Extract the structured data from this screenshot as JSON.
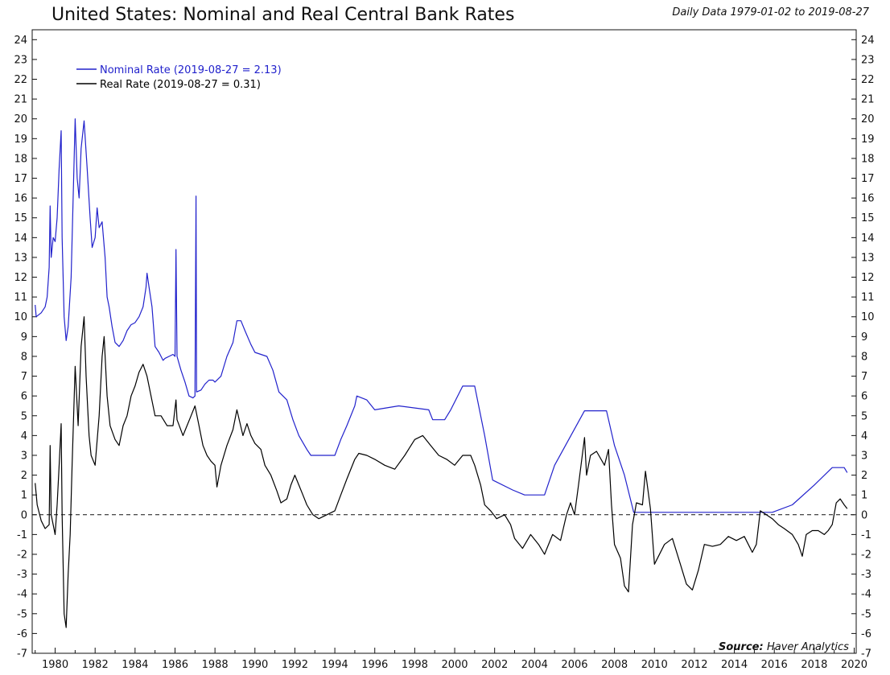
{
  "chart_data": {
    "type": "line",
    "title": "United States: Nominal and Real Central Bank Rates",
    "subtitle": "Daily Data 1979-01-02 to 2019-08-27",
    "source_label": "Source:",
    "source_value": "Haver Analytics",
    "xlim": [
      1978.85,
      2020.1
    ],
    "ylim": [
      -7,
      24.5
    ],
    "xticks": [
      1980,
      1982,
      1984,
      1986,
      1988,
      1990,
      1992,
      1994,
      1996,
      1998,
      2000,
      2002,
      2004,
      2006,
      2008,
      2010,
      2012,
      2014,
      2016,
      2018,
      2020
    ],
    "yticks": [
      -7,
      -6,
      -5,
      -4,
      -3,
      -2,
      -1,
      0,
      1,
      2,
      3,
      4,
      5,
      6,
      7,
      8,
      9,
      10,
      11,
      12,
      13,
      14,
      15,
      16,
      17,
      18,
      19,
      20,
      21,
      22,
      23,
      24
    ],
    "zero_line": "dashed",
    "grid": false,
    "legend_position": "top-left",
    "series": [
      {
        "name": "Nominal Rate (2019-08-27 = 2.13)",
        "color": "#2222cc",
        "points": [
          [
            1979.0,
            10.6
          ],
          [
            1979.05,
            10.0
          ],
          [
            1979.3,
            10.2
          ],
          [
            1979.5,
            10.5
          ],
          [
            1979.6,
            11.0
          ],
          [
            1979.7,
            12.5
          ],
          [
            1979.75,
            15.6
          ],
          [
            1979.8,
            13.0
          ],
          [
            1979.9,
            14.0
          ],
          [
            1980.0,
            13.8
          ],
          [
            1980.1,
            15.0
          ],
          [
            1980.2,
            17.5
          ],
          [
            1980.3,
            19.4
          ],
          [
            1980.35,
            14.0
          ],
          [
            1980.45,
            10.0
          ],
          [
            1980.55,
            8.8
          ],
          [
            1980.65,
            9.5
          ],
          [
            1980.8,
            12.0
          ],
          [
            1980.9,
            16.0
          ],
          [
            1981.0,
            20.0
          ],
          [
            1981.1,
            17.0
          ],
          [
            1981.2,
            16.0
          ],
          [
            1981.3,
            18.5
          ],
          [
            1981.45,
            19.9
          ],
          [
            1981.6,
            17.5
          ],
          [
            1981.75,
            15.0
          ],
          [
            1981.85,
            13.5
          ],
          [
            1982.0,
            14.0
          ],
          [
            1982.1,
            15.5
          ],
          [
            1982.2,
            14.5
          ],
          [
            1982.35,
            14.8
          ],
          [
            1982.5,
            13.0
          ],
          [
            1982.6,
            11.0
          ],
          [
            1982.7,
            10.5
          ],
          [
            1982.85,
            9.5
          ],
          [
            1983.0,
            8.7
          ],
          [
            1983.2,
            8.5
          ],
          [
            1983.4,
            8.8
          ],
          [
            1983.6,
            9.3
          ],
          [
            1983.8,
            9.6
          ],
          [
            1984.0,
            9.7
          ],
          [
            1984.2,
            10.0
          ],
          [
            1984.4,
            10.5
          ],
          [
            1984.55,
            11.5
          ],
          [
            1984.6,
            12.2
          ],
          [
            1984.7,
            11.5
          ],
          [
            1984.85,
            10.5
          ],
          [
            1985.0,
            8.5
          ],
          [
            1985.2,
            8.2
          ],
          [
            1985.4,
            7.8
          ],
          [
            1985.5,
            7.9
          ],
          [
            1985.7,
            8.0
          ],
          [
            1985.9,
            8.1
          ],
          [
            1986.0,
            8.0
          ],
          [
            1986.05,
            13.4
          ],
          [
            1986.1,
            8.0
          ],
          [
            1986.3,
            7.3
          ],
          [
            1986.5,
            6.7
          ],
          [
            1986.7,
            6.0
          ],
          [
            1986.9,
            5.9
          ],
          [
            1987.0,
            6.0
          ],
          [
            1987.05,
            16.1
          ],
          [
            1987.08,
            6.2
          ],
          [
            1987.3,
            6.3
          ],
          [
            1987.5,
            6.6
          ],
          [
            1987.7,
            6.8
          ],
          [
            1987.9,
            6.8
          ],
          [
            1988.0,
            6.7
          ],
          [
            1988.3,
            7.0
          ],
          [
            1988.6,
            8.0
          ],
          [
            1988.9,
            8.7
          ],
          [
            1989.1,
            9.8
          ],
          [
            1989.3,
            9.8
          ],
          [
            1989.5,
            9.3
          ],
          [
            1989.8,
            8.6
          ],
          [
            1990.0,
            8.2
          ],
          [
            1990.6,
            8.0
          ],
          [
            1990.9,
            7.3
          ],
          [
            1991.2,
            6.2
          ],
          [
            1991.6,
            5.8
          ],
          [
            1991.9,
            4.8
          ],
          [
            1992.2,
            4.0
          ],
          [
            1992.6,
            3.3
          ],
          [
            1992.8,
            3.0
          ],
          [
            1994.0,
            3.0
          ],
          [
            1994.3,
            3.8
          ],
          [
            1994.6,
            4.5
          ],
          [
            1995.0,
            5.5
          ],
          [
            1995.1,
            6.0
          ],
          [
            1995.6,
            5.8
          ],
          [
            1996.0,
            5.3
          ],
          [
            1997.2,
            5.5
          ],
          [
            1998.7,
            5.3
          ],
          [
            1998.9,
            4.8
          ],
          [
            1999.5,
            4.8
          ],
          [
            1999.8,
            5.3
          ],
          [
            2000.4,
            6.5
          ],
          [
            2001.0,
            6.5
          ],
          [
            2001.5,
            4.0
          ],
          [
            2001.9,
            1.75
          ],
          [
            2002.9,
            1.25
          ],
          [
            2003.5,
            1.0
          ],
          [
            2004.5,
            1.0
          ],
          [
            2005.0,
            2.5
          ],
          [
            2006.5,
            5.25
          ],
          [
            2007.6,
            5.25
          ],
          [
            2008.0,
            3.5
          ],
          [
            2008.5,
            2.0
          ],
          [
            2008.96,
            0.12
          ],
          [
            2015.9,
            0.12
          ],
          [
            2016.9,
            0.5
          ],
          [
            2018.0,
            1.5
          ],
          [
            2018.9,
            2.38
          ],
          [
            2019.5,
            2.38
          ],
          [
            2019.65,
            2.13
          ]
        ]
      },
      {
        "name": "Real Rate (2019-08-27 = 0.31)",
        "color": "#000000",
        "points": [
          [
            1979.0,
            1.6
          ],
          [
            1979.1,
            0.5
          ],
          [
            1979.3,
            -0.3
          ],
          [
            1979.5,
            -0.7
          ],
          [
            1979.7,
            -0.5
          ],
          [
            1979.75,
            3.5
          ],
          [
            1979.8,
            0.0
          ],
          [
            1980.0,
            -1.0
          ],
          [
            1980.1,
            0.5
          ],
          [
            1980.2,
            2.5
          ],
          [
            1980.3,
            4.6
          ],
          [
            1980.35,
            0.0
          ],
          [
            1980.45,
            -5.0
          ],
          [
            1980.55,
            -5.7
          ],
          [
            1980.65,
            -3.0
          ],
          [
            1980.75,
            -1.0
          ],
          [
            1980.85,
            2.5
          ],
          [
            1981.0,
            7.5
          ],
          [
            1981.15,
            4.5
          ],
          [
            1981.3,
            8.5
          ],
          [
            1981.45,
            10.0
          ],
          [
            1981.55,
            7.0
          ],
          [
            1981.7,
            4.0
          ],
          [
            1981.8,
            3.0
          ],
          [
            1982.0,
            2.5
          ],
          [
            1982.2,
            5.0
          ],
          [
            1982.35,
            8.0
          ],
          [
            1982.45,
            9.0
          ],
          [
            1982.6,
            6.0
          ],
          [
            1982.75,
            4.5
          ],
          [
            1983.0,
            3.8
          ],
          [
            1983.2,
            3.5
          ],
          [
            1983.4,
            4.5
          ],
          [
            1983.6,
            5.0
          ],
          [
            1983.8,
            6.0
          ],
          [
            1984.0,
            6.5
          ],
          [
            1984.2,
            7.2
          ],
          [
            1984.4,
            7.6
          ],
          [
            1984.6,
            7.0
          ],
          [
            1984.8,
            6.0
          ],
          [
            1985.0,
            5.0
          ],
          [
            1985.3,
            5.0
          ],
          [
            1985.6,
            4.5
          ],
          [
            1985.9,
            4.5
          ],
          [
            1986.05,
            5.8
          ],
          [
            1986.1,
            4.8
          ],
          [
            1986.4,
            4.0
          ],
          [
            1986.6,
            4.5
          ],
          [
            1986.8,
            5.0
          ],
          [
            1987.0,
            5.5
          ],
          [
            1987.2,
            4.5
          ],
          [
            1987.4,
            3.5
          ],
          [
            1987.6,
            3.0
          ],
          [
            1987.8,
            2.7
          ],
          [
            1988.0,
            2.5
          ],
          [
            1988.1,
            1.4
          ],
          [
            1988.3,
            2.5
          ],
          [
            1988.6,
            3.5
          ],
          [
            1988.9,
            4.3
          ],
          [
            1989.1,
            5.3
          ],
          [
            1989.4,
            4.0
          ],
          [
            1989.6,
            4.6
          ],
          [
            1989.8,
            4.0
          ],
          [
            1990.0,
            3.6
          ],
          [
            1990.3,
            3.3
          ],
          [
            1990.5,
            2.5
          ],
          [
            1990.8,
            2.0
          ],
          [
            1991.1,
            1.2
          ],
          [
            1991.3,
            0.6
          ],
          [
            1991.6,
            0.8
          ],
          [
            1991.8,
            1.5
          ],
          [
            1992.0,
            2.0
          ],
          [
            1992.2,
            1.5
          ],
          [
            1992.4,
            1.0
          ],
          [
            1992.6,
            0.5
          ],
          [
            1992.9,
            0.0
          ],
          [
            1993.2,
            -0.2
          ],
          [
            1993.6,
            0.0
          ],
          [
            1994.0,
            0.2
          ],
          [
            1994.3,
            1.0
          ],
          [
            1994.6,
            1.8
          ],
          [
            1995.0,
            2.8
          ],
          [
            1995.2,
            3.1
          ],
          [
            1995.6,
            3.0
          ],
          [
            1996.0,
            2.8
          ],
          [
            1996.5,
            2.5
          ],
          [
            1997.0,
            2.3
          ],
          [
            1997.5,
            3.0
          ],
          [
            1998.0,
            3.8
          ],
          [
            1998.4,
            4.0
          ],
          [
            1998.8,
            3.5
          ],
          [
            1999.2,
            3.0
          ],
          [
            1999.6,
            2.8
          ],
          [
            2000.0,
            2.5
          ],
          [
            2000.4,
            3.0
          ],
          [
            2000.8,
            3.0
          ],
          [
            2001.0,
            2.5
          ],
          [
            2001.3,
            1.5
          ],
          [
            2001.5,
            0.5
          ],
          [
            2001.8,
            0.2
          ],
          [
            2002.1,
            -0.2
          ],
          [
            2002.5,
            0.0
          ],
          [
            2002.8,
            -0.5
          ],
          [
            2003.0,
            -1.2
          ],
          [
            2003.4,
            -1.7
          ],
          [
            2003.8,
            -1.0
          ],
          [
            2004.2,
            -1.5
          ],
          [
            2004.5,
            -2.0
          ],
          [
            2004.9,
            -1.0
          ],
          [
            2005.3,
            -1.3
          ],
          [
            2005.6,
            0.0
          ],
          [
            2005.8,
            0.6
          ],
          [
            2006.0,
            0.0
          ],
          [
            2006.2,
            1.5
          ],
          [
            2006.5,
            3.9
          ],
          [
            2006.6,
            2.0
          ],
          [
            2006.8,
            3.0
          ],
          [
            2007.1,
            3.2
          ],
          [
            2007.5,
            2.5
          ],
          [
            2007.7,
            3.3
          ],
          [
            2007.85,
            0.5
          ],
          [
            2008.0,
            -1.5
          ],
          [
            2008.3,
            -2.2
          ],
          [
            2008.5,
            -3.6
          ],
          [
            2008.7,
            -3.9
          ],
          [
            2008.9,
            -0.5
          ],
          [
            2009.1,
            0.6
          ],
          [
            2009.4,
            0.5
          ],
          [
            2009.55,
            2.2
          ],
          [
            2009.8,
            0.3
          ],
          [
            2010.0,
            -2.5
          ],
          [
            2010.5,
            -1.5
          ],
          [
            2010.9,
            -1.2
          ],
          [
            2011.3,
            -2.5
          ],
          [
            2011.6,
            -3.5
          ],
          [
            2011.9,
            -3.8
          ],
          [
            2012.2,
            -2.8
          ],
          [
            2012.5,
            -1.5
          ],
          [
            2012.9,
            -1.6
          ],
          [
            2013.3,
            -1.5
          ],
          [
            2013.7,
            -1.1
          ],
          [
            2014.1,
            -1.3
          ],
          [
            2014.5,
            -1.1
          ],
          [
            2014.9,
            -1.9
          ],
          [
            2015.1,
            -1.5
          ],
          [
            2015.3,
            0.2
          ],
          [
            2015.6,
            0.0
          ],
          [
            2015.9,
            -0.2
          ],
          [
            2016.2,
            -0.5
          ],
          [
            2016.5,
            -0.7
          ],
          [
            2016.9,
            -1.0
          ],
          [
            2017.2,
            -1.5
          ],
          [
            2017.4,
            -2.1
          ],
          [
            2017.6,
            -1.0
          ],
          [
            2017.9,
            -0.8
          ],
          [
            2018.2,
            -0.8
          ],
          [
            2018.5,
            -1.0
          ],
          [
            2018.7,
            -0.8
          ],
          [
            2018.9,
            -0.5
          ],
          [
            2019.1,
            0.6
          ],
          [
            2019.3,
            0.8
          ],
          [
            2019.5,
            0.5
          ],
          [
            2019.65,
            0.31
          ]
        ]
      }
    ]
  }
}
